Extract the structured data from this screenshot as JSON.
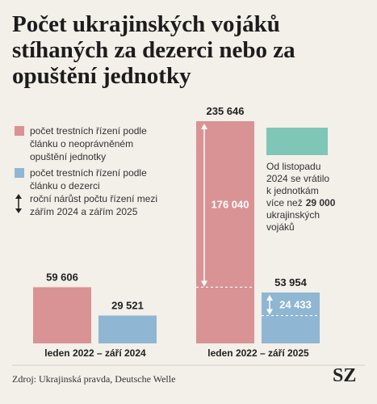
{
  "chart_data": {
    "type": "bar",
    "title": "Počet ukrajinských vojáků stíhaných za dezerci nebo za opuštění jednotky",
    "categories": [
      "leden 2022 – září 2024",
      "leden 2022 – září 2025"
    ],
    "series": [
      {
        "name": "počet trestních řízení podle článku o neoprávněném opuštění jednotky",
        "color": "#d99394",
        "values": [
          59606,
          235646
        ],
        "value_labels": [
          "59 606",
          "235 646"
        ]
      },
      {
        "name": "počet trestních řízení podle článku o dezerci",
        "color": "#8fb6d2",
        "values": [
          29521,
          53954
        ],
        "value_labels": [
          "29 521",
          "53 954"
        ]
      }
    ],
    "growth": {
      "name": "roční nárůst počtu řízení mezi zářím 2024 a zářím 2025",
      "values": [
        176040,
        24433
      ],
      "value_labels": [
        "176 040",
        "24 433"
      ]
    },
    "annotation": [
      [
        {
          "text": "Od listopadu"
        }
      ],
      [
        {
          "text": "2024 se vrátilo"
        }
      ],
      [
        {
          "text": "k jednotkám"
        }
      ],
      [
        {
          "text": "více než"
        },
        {
          "text": "29 000",
          "bold": true
        }
      ],
      [
        {
          "text": "ukrajinských"
        }
      ],
      [
        {
          "text": "vojáků"
        }
      ]
    ],
    "source": "Zdroj: Ukrajinská pravda, Deutsche Welle",
    "logo": "SZ"
  }
}
